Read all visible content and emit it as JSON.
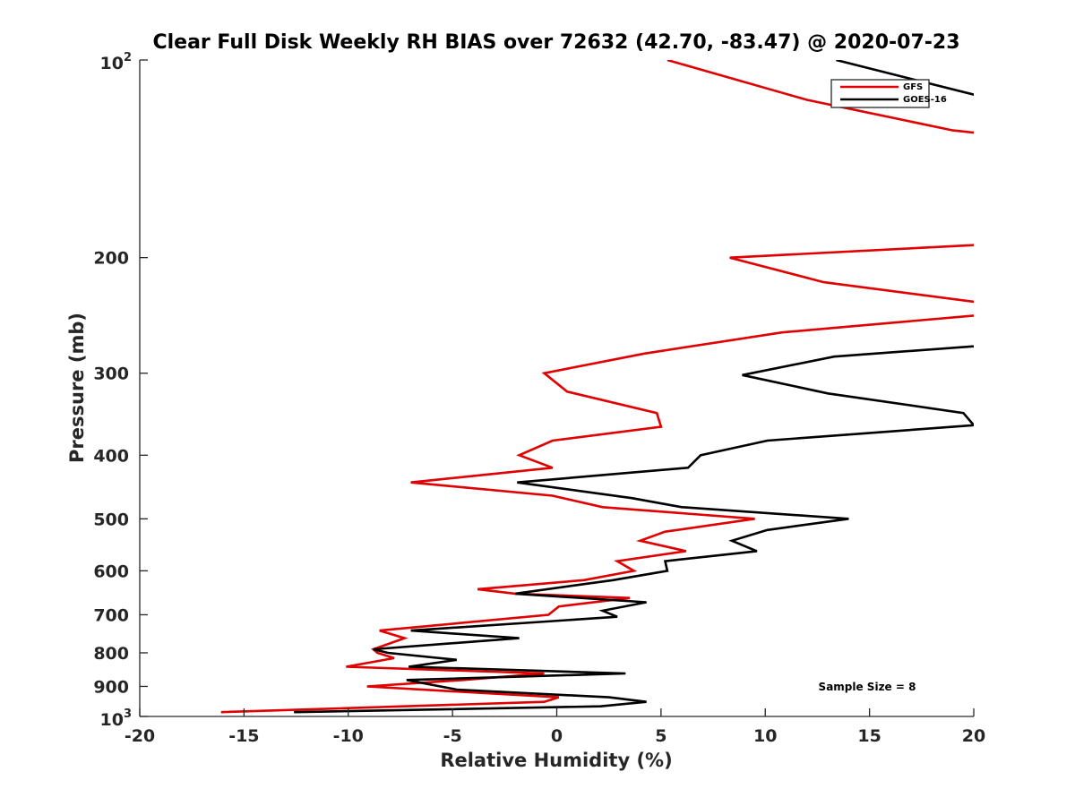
{
  "chart_data": {
    "type": "line",
    "title": "Clear Full Disk Weekly RH BIAS over 72632 (42.70, -83.47) @ 2020-07-23",
    "xlabel": "Relative Humidity (%)",
    "ylabel": "Pressure (mb)",
    "xlim": [
      -20,
      20
    ],
    "ylim": [
      100,
      1000
    ],
    "y_scale": "log",
    "y_reversed": true,
    "x_ticks": [
      "-20",
      "-15",
      "-10",
      "-5",
      "0",
      "5",
      "10",
      "15",
      "20"
    ],
    "y_ticks": [
      {
        "value": 100,
        "base": "10",
        "exp": "2"
      },
      {
        "value": 200,
        "label": "200"
      },
      {
        "value": 300,
        "label": "300"
      },
      {
        "value": 400,
        "label": "400"
      },
      {
        "value": 500,
        "label": "500"
      },
      {
        "value": 600,
        "label": "600"
      },
      {
        "value": 700,
        "label": "700"
      },
      {
        "value": 800,
        "label": "800"
      },
      {
        "value": 900,
        "label": "900"
      },
      {
        "value": 1000,
        "base": "10",
        "exp": "3"
      }
    ],
    "legend_position": "top-right",
    "annotation": "Sample Size = 8",
    "series": [
      {
        "name": "GFS",
        "color": "#e00000",
        "points": [
          [
            5.3,
            100
          ],
          [
            12.0,
            115
          ],
          [
            19.0,
            128
          ],
          [
            22.0,
            131
          ],
          [
            22.0,
            190
          ],
          [
            8.3,
            200
          ],
          [
            12.8,
            218
          ],
          [
            22.0,
            238
          ],
          [
            22.0,
            242
          ],
          [
            10.8,
            260
          ],
          [
            4.2,
            280
          ],
          [
            -0.6,
            300
          ],
          [
            0.5,
            320
          ],
          [
            4.8,
            345
          ],
          [
            5.0,
            362
          ],
          [
            -0.2,
            380
          ],
          [
            -1.8,
            400
          ],
          [
            -0.2,
            418
          ],
          [
            -7.0,
            440
          ],
          [
            -0.2,
            461
          ],
          [
            2.2,
            480
          ],
          [
            9.5,
            500
          ],
          [
            5.2,
            523
          ],
          [
            4.0,
            540
          ],
          [
            6.2,
            560
          ],
          [
            2.9,
            580
          ],
          [
            3.7,
            600
          ],
          [
            1.3,
            620
          ],
          [
            -3.8,
            640
          ],
          [
            -2.0,
            650
          ],
          [
            3.5,
            660
          ],
          [
            0.1,
            680
          ],
          [
            -0.4,
            700
          ],
          [
            -8.5,
            740
          ],
          [
            -7.3,
            760
          ],
          [
            -8.8,
            790
          ],
          [
            -8.6,
            800
          ],
          [
            -7.8,
            815
          ],
          [
            -10.1,
            840
          ],
          [
            -0.6,
            860
          ],
          [
            -4.5,
            880
          ],
          [
            -9.1,
            900
          ],
          [
            -5.2,
            915
          ],
          [
            0.1,
            935
          ],
          [
            -0.6,
            950
          ],
          [
            -16.1,
            985
          ]
        ]
      },
      {
        "name": "GOES-16",
        "color": "#000000",
        "points": [
          [
            13.4,
            100
          ],
          [
            21.0,
            115
          ],
          [
            22.0,
            118
          ],
          [
            22.0,
            270
          ],
          [
            13.3,
            283
          ],
          [
            8.9,
            302
          ],
          [
            13.0,
            322
          ],
          [
            19.5,
            345
          ],
          [
            20.0,
            360
          ],
          [
            10.1,
            380
          ],
          [
            6.9,
            400
          ],
          [
            6.3,
            418
          ],
          [
            -1.9,
            440
          ],
          [
            3.6,
            465
          ],
          [
            6.0,
            480
          ],
          [
            14.0,
            500
          ],
          [
            10.1,
            520
          ],
          [
            8.4,
            540
          ],
          [
            9.6,
            560
          ],
          [
            5.2,
            580
          ],
          [
            5.3,
            600
          ],
          [
            2.7,
            620
          ],
          [
            -2.0,
            650
          ],
          [
            4.3,
            670
          ],
          [
            2.2,
            690
          ],
          [
            2.9,
            705
          ],
          [
            -7.0,
            740
          ],
          [
            -1.8,
            760
          ],
          [
            -8.8,
            790
          ],
          [
            -8.1,
            800
          ],
          [
            -4.8,
            820
          ],
          [
            -7.1,
            840
          ],
          [
            3.3,
            860
          ],
          [
            -7.2,
            880
          ],
          [
            -4.8,
            910
          ],
          [
            2.5,
            935
          ],
          [
            4.3,
            950
          ],
          [
            2.1,
            965
          ],
          [
            -12.6,
            985
          ]
        ]
      }
    ]
  }
}
